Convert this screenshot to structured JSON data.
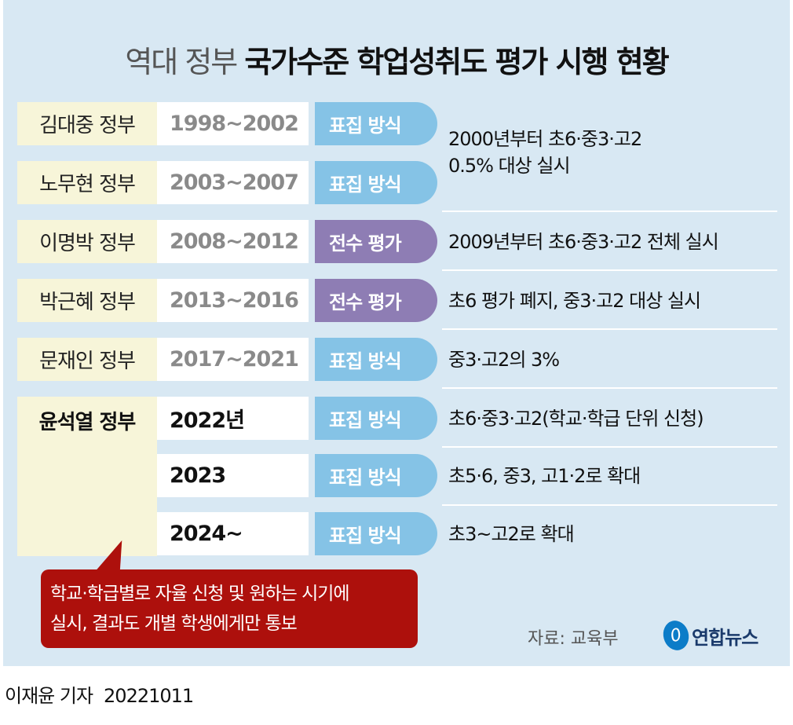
{
  "title": {
    "light": "역대 정부",
    "bold": "국가수준 학업성취도 평가 시행 현황"
  },
  "colors": {
    "background": "#d8e8f3",
    "name_cell": "#f7f5d9",
    "sample": "#85c3e6",
    "census": "#8e7db4",
    "callout": "#ad100c"
  },
  "rows": [
    {
      "government": "김대중 정부",
      "period": "1998~2002",
      "method": "표집 방식"
    },
    {
      "government": "노무현 정부",
      "period": "2003~2007",
      "method": "표집 방식"
    },
    {
      "government": "이명박 정부",
      "period": "2008~2012",
      "method": "전수 평가"
    },
    {
      "government": "박근혜 정부",
      "period": "2013~2016",
      "method": "전수 평가"
    },
    {
      "government": "문재인 정부",
      "period": "2017~2021",
      "method": "표집 방식"
    }
  ],
  "descs": [
    "2000년부터 초6·중3·고2",
    "0.5% 대상 실시",
    "2009년부터 초6·중3·고2 전체 실시",
    "초6 평가 폐지, 중3·고2 대상 실시",
    "중3·고2의 3%"
  ],
  "yoon": {
    "government": "윤석열 정부",
    "rows": [
      {
        "period": "2022년",
        "method": "표집 방식",
        "desc": "초6·중3·고2(학교·학급 단위 신청)"
      },
      {
        "period": "2023",
        "method": "표집 방식",
        "desc": "초5·6, 중3, 고1·2로 확대"
      },
      {
        "period": "2024~",
        "method": "표집 방식",
        "desc": "초3~고2로 확대"
      }
    ]
  },
  "callout": [
    "학교·학급별로 자율 신청 및 원하는 시기에",
    "실시, 결과도 개별 학생에게만 통보"
  ],
  "source": "자료: 교육부",
  "logo": "연합뉴스",
  "byline": {
    "reporter": "이재윤 기자",
    "date": "20221011"
  }
}
